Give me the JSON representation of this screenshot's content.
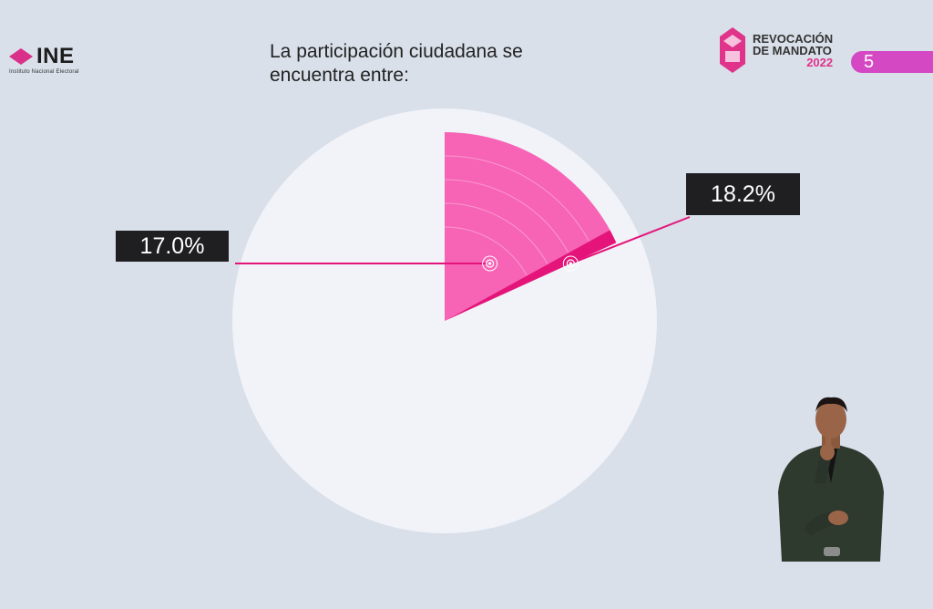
{
  "header": {
    "logo": {
      "name": "INE",
      "subtitle": "Instituto Nacional Electoral"
    },
    "title_line1": "La participación ciudadana se",
    "title_line2": "encuentra entre:",
    "badge": {
      "line1": "REVOCACIÓN",
      "line2": "DE MANDATO",
      "year": "2022"
    },
    "page_number": "5"
  },
  "colors": {
    "background": "#d9e0ea",
    "pie_base": "#f1f3f8",
    "slice_low": "#f763b5",
    "slice_range": "#e5147a",
    "label_bg": "#1f1f22",
    "accent": "#d548c4"
  },
  "chart_data": {
    "type": "pie",
    "title": "La participación ciudadana se encuentra entre:",
    "range_low": 17.0,
    "range_high": 18.2,
    "unit": "%",
    "labels": [
      "17.0%",
      "18.2%"
    ],
    "grid": false,
    "legend": "none"
  }
}
